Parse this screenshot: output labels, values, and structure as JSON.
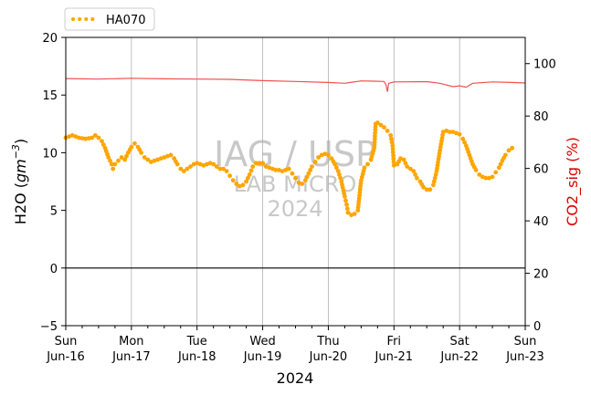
{
  "chart_data": {
    "type": "line",
    "xlabel": "2024",
    "ylabel_left_main": "H2O (",
    "ylabel_left_unit_base": "gm",
    "ylabel_left_unit_exp": "−3",
    "ylabel_left_close": ")",
    "ylabel_right": "CO2_sig (%)",
    "ylim_left": [
      -5,
      20
    ],
    "ylim_right": [
      0,
      110
    ],
    "y_ticks_left": [
      "−5",
      "0",
      "5",
      "10",
      "15",
      "20"
    ],
    "y_ticks_right": [
      "0",
      "20",
      "40",
      "60",
      "80",
      "100"
    ],
    "x_ticks": [
      {
        "day": "Sun",
        "date": "Jun-16"
      },
      {
        "day": "Mon",
        "date": "Jun-17"
      },
      {
        "day": "Tue",
        "date": "Jun-18"
      },
      {
        "day": "Wed",
        "date": "Jun-19"
      },
      {
        "day": "Thu",
        "date": "Jun-20"
      },
      {
        "day": "Fri",
        "date": "Jun-21"
      },
      {
        "day": "Sat",
        "date": "Jun-22"
      },
      {
        "day": "Sun",
        "date": "Jun-23"
      }
    ],
    "grid": "vertical",
    "legend_position": "top-left",
    "colors": {
      "h2o": "#FFA500",
      "co2": "#F05050"
    },
    "watermark": {
      "line1": "IAG / USP",
      "line2": "LAB MICRO",
      "line3": "2024"
    },
    "series": [
      {
        "name": "HA070",
        "axis": "left",
        "style": "dotted",
        "points": [
          [
            0.0,
            11.3
          ],
          [
            0.1,
            11.5
          ],
          [
            0.2,
            11.3
          ],
          [
            0.3,
            11.2
          ],
          [
            0.4,
            11.3
          ],
          [
            0.45,
            11.5
          ],
          [
            0.5,
            11.3
          ],
          [
            0.55,
            11.0
          ],
          [
            0.6,
            10.4
          ],
          [
            0.65,
            9.6
          ],
          [
            0.7,
            9.0
          ],
          [
            0.72,
            8.6
          ],
          [
            0.75,
            9.0
          ],
          [
            0.8,
            9.3
          ],
          [
            0.85,
            9.6
          ],
          [
            0.9,
            9.4
          ],
          [
            0.95,
            10.0
          ],
          [
            1.0,
            10.5
          ],
          [
            1.05,
            10.8
          ],
          [
            1.1,
            10.5
          ],
          [
            1.15,
            10.0
          ],
          [
            1.2,
            9.6
          ],
          [
            1.25,
            9.4
          ],
          [
            1.3,
            9.2
          ],
          [
            1.35,
            9.3
          ],
          [
            1.4,
            9.4
          ],
          [
            1.45,
            9.5
          ],
          [
            1.5,
            9.6
          ],
          [
            1.55,
            9.7
          ],
          [
            1.6,
            9.8
          ],
          [
            1.65,
            9.5
          ],
          [
            1.7,
            9.0
          ],
          [
            1.75,
            8.6
          ],
          [
            1.8,
            8.4
          ],
          [
            1.85,
            8.6
          ],
          [
            1.9,
            8.8
          ],
          [
            1.95,
            9.0
          ],
          [
            2.0,
            9.1
          ],
          [
            2.05,
            9.0
          ],
          [
            2.1,
            8.9
          ],
          [
            2.15,
            9.0
          ],
          [
            2.2,
            9.1
          ],
          [
            2.25,
            9.0
          ],
          [
            2.3,
            8.8
          ],
          [
            2.35,
            8.6
          ],
          [
            2.4,
            8.6
          ],
          [
            2.45,
            8.4
          ],
          [
            2.5,
            8.0
          ],
          [
            2.55,
            7.6
          ],
          [
            2.6,
            7.3
          ],
          [
            2.65,
            7.1
          ],
          [
            2.7,
            7.2
          ],
          [
            2.75,
            7.5
          ],
          [
            2.8,
            8.1
          ],
          [
            2.85,
            8.8
          ],
          [
            2.9,
            9.1
          ],
          [
            2.95,
            9.1
          ],
          [
            3.0,
            9.1
          ],
          [
            3.05,
            8.8
          ],
          [
            3.1,
            8.7
          ],
          [
            3.15,
            8.6
          ],
          [
            3.2,
            8.5
          ],
          [
            3.25,
            8.5
          ],
          [
            3.3,
            8.4
          ],
          [
            3.35,
            8.5
          ],
          [
            3.4,
            8.6
          ],
          [
            3.45,
            8.2
          ],
          [
            3.5,
            7.8
          ],
          [
            3.55,
            7.4
          ],
          [
            3.6,
            7.3
          ],
          [
            3.65,
            7.6
          ],
          [
            3.7,
            8.2
          ],
          [
            3.75,
            8.8
          ],
          [
            3.8,
            9.2
          ],
          [
            3.85,
            9.6
          ],
          [
            3.9,
            9.8
          ],
          [
            3.95,
            9.9
          ],
          [
            4.0,
            9.8
          ],
          [
            4.05,
            9.5
          ],
          [
            4.1,
            9.0
          ],
          [
            4.15,
            8.4
          ],
          [
            4.2,
            7.5
          ],
          [
            4.25,
            6.2
          ],
          [
            4.28,
            5.5
          ],
          [
            4.3,
            4.8
          ],
          [
            4.35,
            4.6
          ],
          [
            4.4,
            4.7
          ],
          [
            4.45,
            5.0
          ],
          [
            4.5,
            7.6
          ],
          [
            4.55,
            8.7
          ],
          [
            4.6,
            9.0
          ],
          [
            4.65,
            9.4
          ],
          [
            4.7,
            10.4
          ],
          [
            4.72,
            12.5
          ],
          [
            4.75,
            12.6
          ],
          [
            4.8,
            12.4
          ],
          [
            4.85,
            12.2
          ],
          [
            4.9,
            11.9
          ],
          [
            4.95,
            11.5
          ],
          [
            4.98,
            10.6
          ],
          [
            5.0,
            8.9
          ],
          [
            5.05,
            9.0
          ],
          [
            5.1,
            9.5
          ],
          [
            5.15,
            9.4
          ],
          [
            5.2,
            8.8
          ],
          [
            5.25,
            8.6
          ],
          [
            5.3,
            8.4
          ],
          [
            5.35,
            7.8
          ],
          [
            5.4,
            7.5
          ],
          [
            5.45,
            7.0
          ],
          [
            5.5,
            6.8
          ],
          [
            5.55,
            6.8
          ],
          [
            5.6,
            7.2
          ],
          [
            5.65,
            8.4
          ],
          [
            5.7,
            10.2
          ],
          [
            5.75,
            11.8
          ],
          [
            5.8,
            11.9
          ],
          [
            5.85,
            11.8
          ],
          [
            5.9,
            11.8
          ],
          [
            5.95,
            11.7
          ],
          [
            6.0,
            11.6
          ],
          [
            6.05,
            11.2
          ],
          [
            6.1,
            10.6
          ],
          [
            6.15,
            9.8
          ],
          [
            6.2,
            9.0
          ],
          [
            6.25,
            8.5
          ],
          [
            6.3,
            8.1
          ],
          [
            6.35,
            7.9
          ],
          [
            6.4,
            7.8
          ],
          [
            6.45,
            7.8
          ],
          [
            6.5,
            7.9
          ],
          [
            6.55,
            8.3
          ],
          [
            6.6,
            8.7
          ],
          [
            6.65,
            9.3
          ],
          [
            6.7,
            9.8
          ],
          [
            6.75,
            10.2
          ],
          [
            6.8,
            10.4
          ]
        ]
      },
      {
        "name": "CO2_sig",
        "axis": "right",
        "style": "solid",
        "points": [
          [
            0.0,
            94.3
          ],
          [
            0.5,
            94.1
          ],
          [
            1.0,
            94.4
          ],
          [
            1.5,
            94.2
          ],
          [
            2.0,
            94.1
          ],
          [
            2.5,
            94.0
          ],
          [
            3.0,
            93.5
          ],
          [
            3.5,
            93.2
          ],
          [
            4.0,
            92.8
          ],
          [
            4.25,
            92.5
          ],
          [
            4.5,
            93.4
          ],
          [
            4.7,
            93.3
          ],
          [
            4.85,
            93.2
          ],
          [
            4.88,
            91.8
          ],
          [
            4.9,
            89.3
          ],
          [
            4.92,
            92.5
          ],
          [
            5.0,
            93.0
          ],
          [
            5.5,
            93.1
          ],
          [
            5.7,
            92.5
          ],
          [
            5.9,
            91.2
          ],
          [
            6.0,
            91.5
          ],
          [
            6.1,
            91.0
          ],
          [
            6.2,
            92.5
          ],
          [
            6.5,
            93.0
          ],
          [
            6.8,
            92.8
          ],
          [
            7.0,
            92.6
          ]
        ]
      }
    ]
  }
}
